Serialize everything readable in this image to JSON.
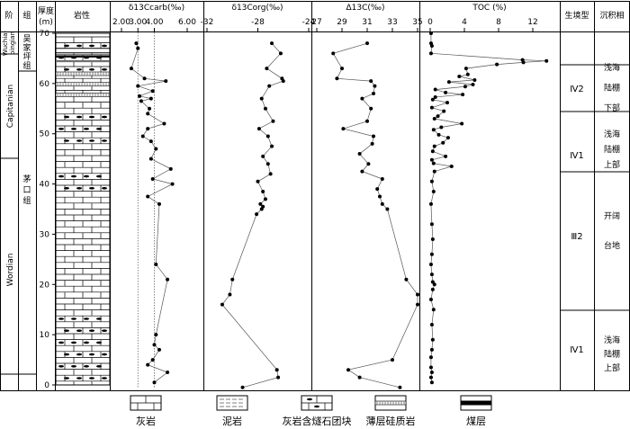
{
  "headers": {
    "stage": "阶",
    "formation": "组",
    "thickness": "厚度\n(m)",
    "lithology": "岩性",
    "habitat": "生境型",
    "facies": "沉积相"
  },
  "stages": [
    "Wuchia-\npingian",
    "Capitanian",
    "Wordian"
  ],
  "formations": [
    "吴家坪组",
    "茅口组"
  ],
  "habitat_types": [
    "Ⅳ2",
    "Ⅳ1",
    "Ⅲ2",
    "Ⅳ1"
  ],
  "facies_labels": [
    "浅海陆棚下部",
    "浅海陆棚上部",
    "开阔台地",
    "浅海陆棚上部"
  ],
  "legend": [
    "灰岩",
    "泥岩",
    "灰岩含燧石团块",
    "薄层硅质岩",
    "煤层"
  ],
  "chart_data": [
    {
      "type": "line",
      "title": "δ13Ccarb(‰)",
      "x_ticks": [
        "2.00",
        "3.00",
        "4.00",
        "6.00"
      ],
      "xlim": [
        2,
        6
      ],
      "ylim": [
        0,
        70
      ],
      "y_ticks": [
        0,
        10,
        20,
        30,
        40,
        50,
        60,
        70
      ],
      "reference_lines": [
        3.0,
        4.0
      ],
      "x": [
        2.9,
        3.0,
        2.6,
        3.4,
        4.7,
        3.0,
        3.9,
        3.1,
        3.8,
        3.2,
        3.7,
        3.6,
        4.6,
        3.6,
        3.3,
        3.8,
        4.1,
        3.8,
        5.0,
        3.9,
        5.1,
        3.6,
        4.3,
        4.1,
        4.8,
        4.1,
        4.0,
        4.3,
        3.9,
        3.6,
        4.8,
        4.0
      ],
      "y": [
        68,
        67,
        63,
        61,
        60.5,
        59.5,
        58.5,
        57.5,
        57,
        56.5,
        55,
        54,
        52,
        51,
        49.5,
        48.5,
        47,
        45,
        43,
        41,
        40,
        37.5,
        36,
        24,
        21,
        10,
        8,
        7,
        5,
        4,
        2.5,
        0.5
      ]
    },
    {
      "type": "line",
      "title": "δ13Corg(‰)",
      "x_ticks": [
        "-32",
        "-28",
        "-24"
      ],
      "xlim": [
        -32,
        -24
      ],
      "ylim": [
        0,
        70
      ],
      "x": [
        -26.9,
        -26.2,
        -27.3,
        -26.1,
        -26.0,
        -27.1,
        -27.7,
        -27.4,
        -26.8,
        -27.9,
        -27.2,
        -26.9,
        -27.6,
        -27.2,
        -27.0,
        -28.0,
        -27.6,
        -27.4,
        -27.8,
        -27.6,
        -27.7,
        -28.1,
        -30.0,
        -30.2,
        -30.8,
        -26.5,
        -26.4,
        -29.2
      ],
      "y": [
        68,
        66,
        63,
        61,
        60.5,
        59.5,
        57,
        55,
        52.5,
        51,
        49.5,
        47.5,
        45.5,
        44,
        42,
        40.5,
        38.5,
        37,
        36,
        35.5,
        35,
        34,
        21,
        18,
        16,
        3,
        1.5,
        -0.5
      ]
    },
    {
      "type": "line",
      "title": "Δ13C(‰)",
      "x_ticks": [
        "27",
        "29",
        "31",
        "33",
        "35"
      ],
      "xlim": [
        27,
        35
      ],
      "ylim": [
        0,
        70
      ],
      "x": [
        31.0,
        28.3,
        29.0,
        28.6,
        31.3,
        31.6,
        31.5,
        30.6,
        31.3,
        31.0,
        29.1,
        31.5,
        31.4,
        30.4,
        31.1,
        30.6,
        32.2,
        31.8,
        32.0,
        32.2,
        32.6,
        34.1,
        35.0,
        35.0,
        33.0,
        29.5,
        30.4,
        33.6
      ],
      "y": [
        68,
        66,
        63,
        61,
        60.5,
        59.5,
        58,
        57,
        55,
        52.5,
        51,
        49.5,
        48,
        46,
        44,
        42.5,
        41,
        39,
        37.5,
        36,
        35,
        21,
        18,
        16,
        5,
        3,
        1.5,
        -0.5
      ]
    },
    {
      "type": "line",
      "title": "TOC (%)",
      "x_ticks": [
        "0",
        "4",
        "8",
        "12"
      ],
      "xlim": [
        0,
        14
      ],
      "ylim": [
        0,
        70
      ],
      "x": [
        0.1,
        0.1,
        0.2,
        0.1,
        10.8,
        13.6,
        10.9,
        7.8,
        4.2,
        4.4,
        3.4,
        5.2,
        2.2,
        5.0,
        4.1,
        0.6,
        1.8,
        3.8,
        0.6,
        0.3,
        2.0,
        0.2,
        1.6,
        0.9,
        0.5,
        3.7,
        1.3,
        0.4,
        1.0,
        2.1,
        1.5,
        0.5,
        0.3,
        1.8,
        0.2,
        0.4,
        2.5,
        0.5,
        0.2,
        0.4,
        0.1,
        0.2,
        0.3,
        0.2,
        0.1,
        0.2,
        0.3,
        0.5,
        0.3,
        0.1,
        0.4,
        0.2,
        0.3,
        0.2,
        0.1,
        0.1,
        0.2,
        0.1,
        0.2
      ],
      "y": [
        70,
        68,
        67.5,
        66,
        64.7,
        64.5,
        64.2,
        63.8,
        63,
        61.8,
        61.4,
        60.7,
        60.3,
        59.8,
        59.4,
        58.8,
        58.2,
        57.8,
        57.3,
        56.8,
        56.2,
        55.2,
        54.5,
        53.5,
        53,
        52,
        51.3,
        50.8,
        49.8,
        49.2,
        48.2,
        47.5,
        46.5,
        45.5,
        44.8,
        44.1,
        43.5,
        42.5,
        40.5,
        38.5,
        36,
        32,
        29,
        26,
        24,
        22,
        20.5,
        20,
        19,
        17,
        15,
        12,
        9,
        7,
        5.5,
        3.5,
        2.5,
        1.5,
        0.5
      ]
    }
  ]
}
